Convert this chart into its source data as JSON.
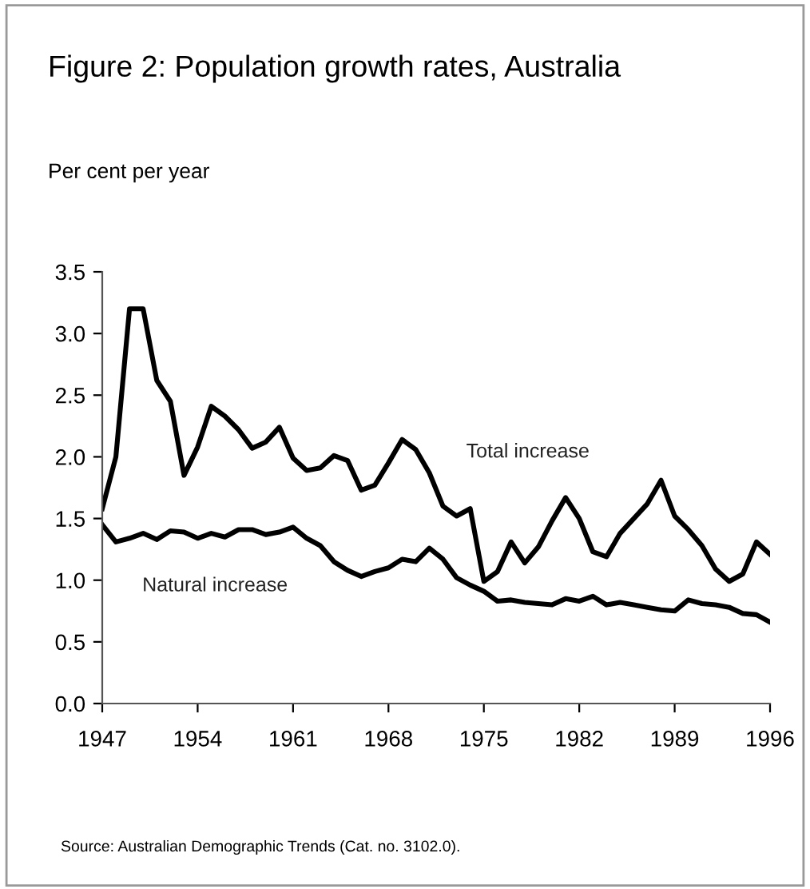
{
  "chart_data": {
    "type": "line",
    "title": "Figure 2: Population growth rates, Australia",
    "ylabel": "Per cent per year",
    "x": [
      1947,
      1948,
      1949,
      1950,
      1951,
      1952,
      1953,
      1954,
      1955,
      1956,
      1957,
      1958,
      1959,
      1960,
      1961,
      1962,
      1963,
      1964,
      1965,
      1966,
      1967,
      1968,
      1969,
      1970,
      1971,
      1972,
      1973,
      1974,
      1975,
      1976,
      1977,
      1978,
      1979,
      1980,
      1981,
      1982,
      1983,
      1984,
      1985,
      1986,
      1987,
      1988,
      1989,
      1990,
      1991,
      1992,
      1993,
      1994,
      1995,
      1996
    ],
    "series": [
      {
        "name": "Total increase",
        "color": "#000000",
        "values": [
          1.58,
          2.0,
          3.2,
          3.2,
          2.62,
          2.45,
          1.85,
          2.08,
          2.41,
          2.33,
          2.22,
          2.07,
          2.12,
          2.24,
          1.99,
          1.89,
          1.91,
          2.01,
          1.97,
          1.73,
          1.77,
          1.95,
          2.14,
          2.06,
          1.87,
          1.6,
          1.52,
          1.58,
          0.99,
          1.07,
          1.31,
          1.14,
          1.27,
          1.48,
          1.67,
          1.5,
          1.23,
          1.19,
          1.38,
          1.5,
          1.62,
          1.81,
          1.52,
          1.41,
          1.28,
          1.09,
          0.99,
          1.05,
          1.31,
          1.21
        ]
      },
      {
        "name": "Natural increase",
        "color": "#000000",
        "values": [
          1.45,
          1.31,
          1.34,
          1.38,
          1.33,
          1.4,
          1.39,
          1.34,
          1.38,
          1.35,
          1.41,
          1.41,
          1.37,
          1.39,
          1.43,
          1.34,
          1.28,
          1.15,
          1.08,
          1.03,
          1.07,
          1.1,
          1.17,
          1.15,
          1.26,
          1.17,
          1.02,
          0.96,
          0.91,
          0.83,
          0.84,
          0.82,
          0.81,
          0.8,
          0.85,
          0.83,
          0.87,
          0.8,
          0.82,
          0.8,
          0.78,
          0.76,
          0.75,
          0.84,
          0.81,
          0.8,
          0.78,
          0.73,
          0.72,
          0.66
        ]
      }
    ],
    "xlim": [
      1947,
      1996
    ],
    "xticks": [
      1947,
      1954,
      1961,
      1968,
      1975,
      1982,
      1989,
      1996
    ],
    "ylim": [
      0,
      3.5
    ],
    "yticks": [
      {
        "value": 0,
        "label": "0.0"
      },
      0.5,
      {
        "value": 1,
        "label": "1.0"
      },
      1.5,
      {
        "value": 2,
        "label": "2.0"
      },
      2.5,
      {
        "value": 3,
        "label": "3.0"
      },
      3.5
    ],
    "grid": false,
    "legend": false,
    "marker": "none",
    "line_style": "solid",
    "annotations": [
      "Source: Australian Demographic Trends (Cat. no. 3102.0)."
    ]
  }
}
